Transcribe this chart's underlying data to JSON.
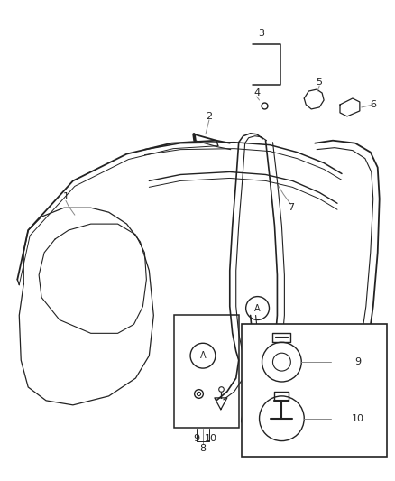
{
  "bg_color": "#ffffff",
  "line_color": "#222222",
  "label_color": "#222222",
  "leader_color": "#888888",
  "fig_width": 4.38,
  "fig_height": 5.33,
  "dpi": 100
}
